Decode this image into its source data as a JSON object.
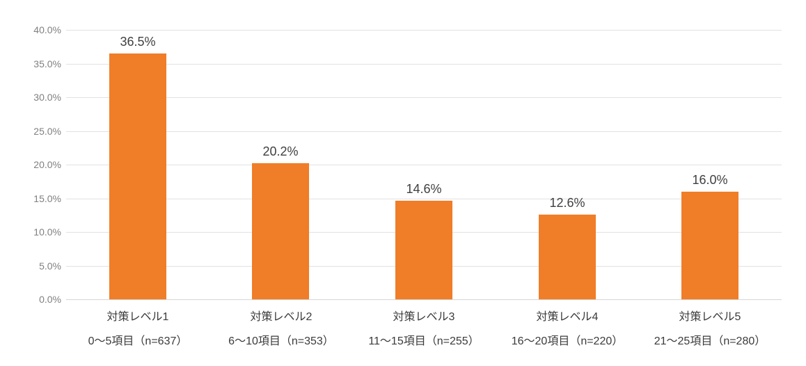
{
  "chart_data": {
    "type": "bar",
    "title": "",
    "xlabel": "",
    "ylabel": "",
    "categories": [
      "対策レベル1",
      "対策レベル2",
      "対策レベル3",
      "対策レベル4",
      "対策レベル5"
    ],
    "category_sublabels": [
      "0～5項目（n=637）",
      "6～10項目（n=353）",
      "11～15項目（n=255）",
      "16～20項目（n=220）",
      "21～25項目（n=280）"
    ],
    "values": [
      36.5,
      20.2,
      14.6,
      12.6,
      16.0
    ],
    "data_labels": [
      "36.5%",
      "20.2%",
      "14.6%",
      "12.6%",
      "16.0%"
    ],
    "ylim": [
      0,
      40
    ],
    "ytick_step": 5,
    "ytick_labels": [
      "0.0%",
      "5.0%",
      "10.0%",
      "15.0%",
      "20.0%",
      "25.0%",
      "30.0%",
      "35.0%",
      "40.0%"
    ],
    "grid": "horizontal",
    "legend": "none",
    "colors": {
      "bar": "#F07D28",
      "gridline": "#E2E2E2",
      "axis_line": "#D6D6D6",
      "ytick_text": "#808080",
      "xtick_text": "#3A3A3A",
      "data_label_text": "#3F3F3F",
      "background": "#FFFFFF"
    }
  }
}
